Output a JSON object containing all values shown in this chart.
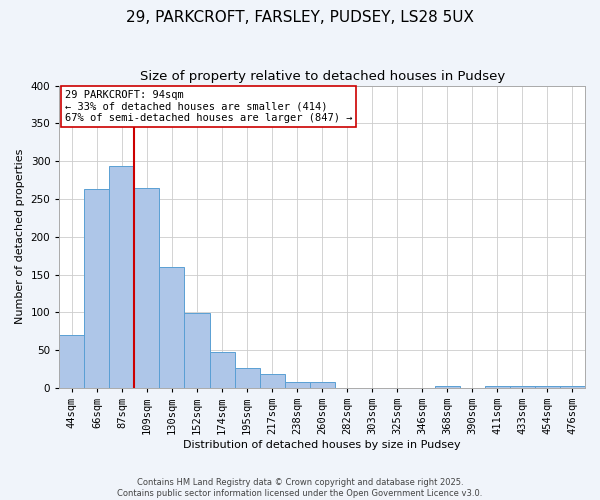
{
  "title": "29, PARKCROFT, FARSLEY, PUDSEY, LS28 5UX",
  "subtitle": "Size of property relative to detached houses in Pudsey",
  "xlabel": "Distribution of detached houses by size in Pudsey",
  "ylabel": "Number of detached properties",
  "bar_labels": [
    "44sqm",
    "66sqm",
    "87sqm",
    "109sqm",
    "130sqm",
    "152sqm",
    "174sqm",
    "195sqm",
    "217sqm",
    "238sqm",
    "260sqm",
    "282sqm",
    "303sqm",
    "325sqm",
    "346sqm",
    "368sqm",
    "390sqm",
    "411sqm",
    "433sqm",
    "454sqm",
    "476sqm"
  ],
  "bar_values": [
    70,
    263,
    293,
    265,
    160,
    99,
    47,
    27,
    19,
    8,
    8,
    0,
    0,
    0,
    0,
    3,
    0,
    3,
    3,
    3,
    3
  ],
  "bar_color": "#aec6e8",
  "bar_edge_color": "#5a9fd4",
  "vline_x": 2.5,
  "vline_color": "#cc0000",
  "ylim": [
    0,
    400
  ],
  "yticks": [
    0,
    50,
    100,
    150,
    200,
    250,
    300,
    350,
    400
  ],
  "annotation_title": "29 PARKCROFT: 94sqm",
  "annotation_line1": "← 33% of detached houses are smaller (414)",
  "annotation_line2": "67% of semi-detached houses are larger (847) →",
  "footer1": "Contains HM Land Registry data © Crown copyright and database right 2025.",
  "footer2": "Contains public sector information licensed under the Open Government Licence v3.0.",
  "bg_color": "#f0f4fa",
  "plot_bg_color": "#ffffff",
  "grid_color": "#cccccc",
  "title_fontsize": 11,
  "subtitle_fontsize": 9.5,
  "axis_label_fontsize": 8,
  "tick_fontsize": 7.5,
  "annotation_fontsize": 7.5
}
